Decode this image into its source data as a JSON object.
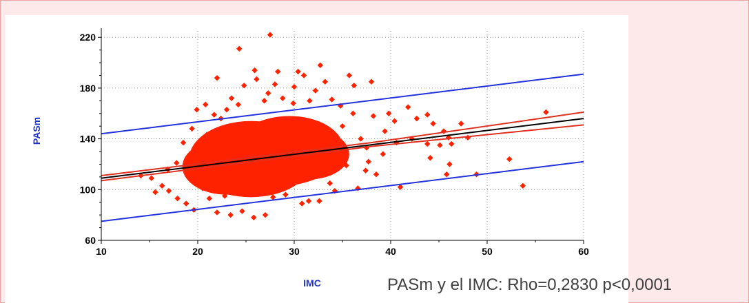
{
  "caption": "PASm y el IMC: Rho=0,2830 p<0,0001",
  "chart_data": {
    "type": "scatter",
    "xlabel": "IMC",
    "ylabel": "PASm",
    "xlim": [
      10,
      60
    ],
    "ylim": [
      60,
      225
    ],
    "x_ticks": [
      10,
      20,
      30,
      40,
      50,
      60
    ],
    "y_ticks": [
      60,
      100,
      140,
      180,
      220
    ],
    "grid": true,
    "colors": {
      "points": "#ff2200",
      "regression": "#000000",
      "confidence_band": "#e03020",
      "prediction_band": "#2233dd",
      "axis_labels": "#2233cc"
    },
    "points": [
      [
        27.5,
        222
      ],
      [
        24.3,
        211
      ],
      [
        28.3,
        193
      ],
      [
        30.4,
        193
      ],
      [
        32.7,
        198
      ],
      [
        25.9,
        194
      ],
      [
        31.0,
        190
      ],
      [
        22.0,
        188
      ],
      [
        26.1,
        187
      ],
      [
        35.7,
        190
      ],
      [
        38.0,
        185
      ],
      [
        24.8,
        182
      ],
      [
        28.0,
        183
      ],
      [
        33.2,
        185
      ],
      [
        36.2,
        182
      ],
      [
        20.8,
        167
      ],
      [
        19.9,
        163
      ],
      [
        41.8,
        165
      ],
      [
        43.8,
        159
      ],
      [
        42.7,
        156
      ],
      [
        39.8,
        160
      ],
      [
        40.4,
        154
      ],
      [
        47.3,
        152
      ],
      [
        44.4,
        152
      ],
      [
        45.5,
        146
      ],
      [
        46.0,
        141
      ],
      [
        48.0,
        141
      ],
      [
        56.1,
        161
      ],
      [
        42.2,
        140
      ],
      [
        43.8,
        136
      ],
      [
        45.1,
        135
      ],
      [
        46.3,
        136
      ],
      [
        44.1,
        125
      ],
      [
        46.1,
        120
      ],
      [
        52.3,
        124
      ],
      [
        37.4,
        115
      ],
      [
        38.5,
        112
      ],
      [
        45.8,
        112
      ],
      [
        48.9,
        112
      ],
      [
        53.7,
        103
      ],
      [
        33.7,
        105
      ],
      [
        36.6,
        101
      ],
      [
        41.0,
        102
      ],
      [
        31.5,
        91
      ],
      [
        32.6,
        91
      ],
      [
        30.8,
        89
      ],
      [
        22.0,
        82
      ],
      [
        23.4,
        80
      ],
      [
        24.6,
        83
      ],
      [
        25.8,
        78
      ],
      [
        27.0,
        80
      ],
      [
        19.6,
        84
      ],
      [
        18.8,
        89
      ],
      [
        17.9,
        93
      ],
      [
        17.0,
        99
      ],
      [
        16.3,
        103
      ],
      [
        15.2,
        109
      ],
      [
        14.1,
        111
      ],
      [
        15.6,
        98
      ],
      [
        16.9,
        116
      ],
      [
        17.8,
        121
      ],
      [
        18.9,
        123
      ],
      [
        18.5,
        137
      ],
      [
        19.4,
        148
      ],
      [
        21.7,
        159
      ],
      [
        23.0,
        163
      ],
      [
        24.2,
        167
      ],
      [
        26.9,
        170
      ],
      [
        28.8,
        172
      ],
      [
        29.9,
        168
      ],
      [
        31.6,
        170
      ],
      [
        33.9,
        171
      ],
      [
        34.8,
        166
      ],
      [
        36.1,
        160
      ],
      [
        38.2,
        158
      ],
      [
        39.4,
        146
      ],
      [
        40.6,
        137
      ],
      [
        39.2,
        128
      ],
      [
        37.7,
        122
      ],
      [
        35.4,
        119
      ],
      [
        29.1,
        96
      ],
      [
        27.8,
        94
      ],
      [
        34.2,
        99
      ],
      [
        20.5,
        101
      ],
      [
        21.2,
        93
      ],
      [
        22.8,
        95
      ],
      [
        26.5,
        99
      ],
      [
        35.0,
        150
      ],
      [
        36.9,
        140
      ],
      [
        37.5,
        133
      ],
      [
        32.2,
        178
      ],
      [
        30.0,
        181
      ],
      [
        27.3,
        176
      ],
      [
        23.5,
        172
      ],
      [
        22.4,
        156
      ],
      [
        20.9,
        143
      ]
    ],
    "regression": [
      [
        10,
        109
      ],
      [
        60,
        156
      ]
    ],
    "confidence_upper": [
      [
        10,
        111
      ],
      [
        38,
        137
      ],
      [
        60,
        161
      ]
    ],
    "confidence_lower": [
      [
        10,
        107
      ],
      [
        38,
        134
      ],
      [
        60,
        151
      ]
    ],
    "prediction_upper": [
      [
        10,
        144
      ],
      [
        60,
        191
      ]
    ],
    "prediction_lower": [
      [
        10,
        75
      ],
      [
        60,
        122
      ]
    ]
  }
}
